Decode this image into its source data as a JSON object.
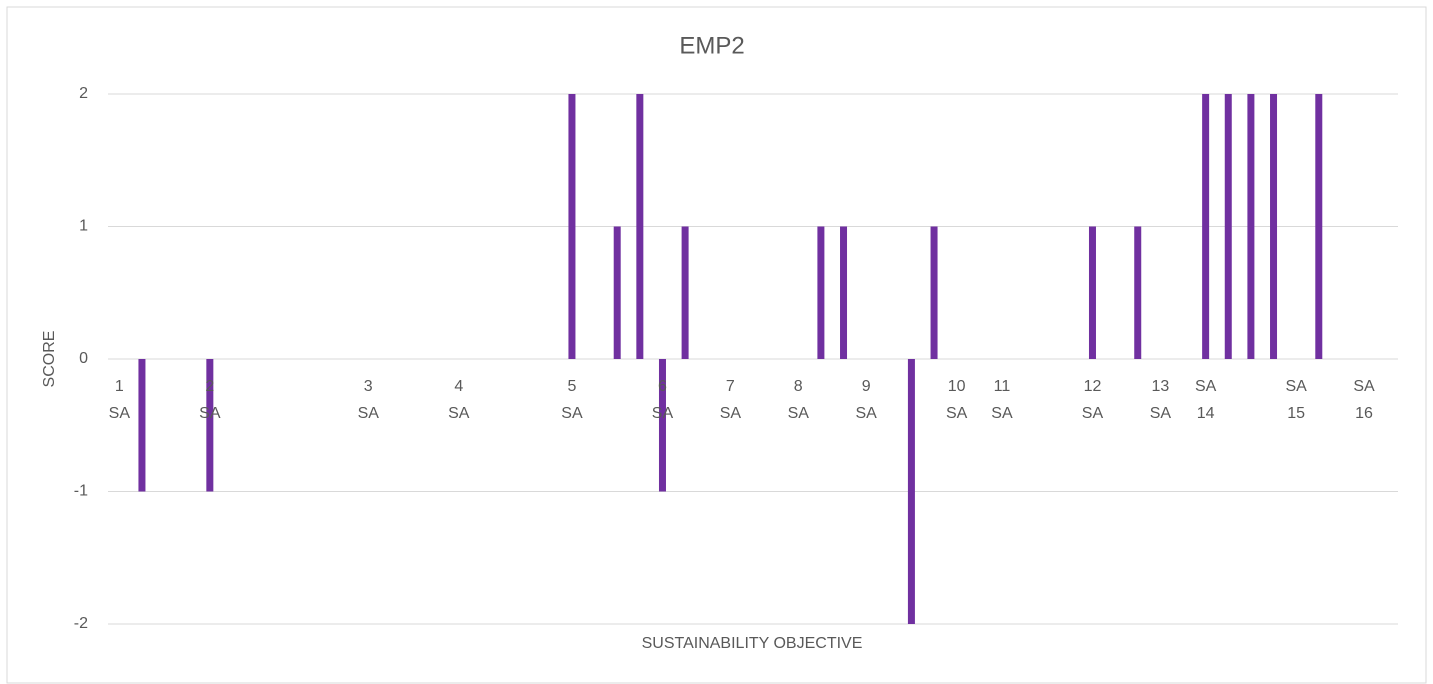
{
  "chart_data": {
    "type": "bar",
    "title": "EMP2",
    "x_label": "SUSTAINABILITY OBJECTIVE",
    "y_label": "SCORE",
    "categories": [
      "1 SA",
      null,
      null,
      null,
      "2 SA",
      null,
      null,
      null,
      null,
      null,
      null,
      "3 SA",
      null,
      null,
      null,
      "4 SA",
      null,
      null,
      null,
      null,
      "5 SA",
      null,
      null,
      null,
      "6 SA",
      null,
      null,
      "7 SA",
      null,
      null,
      "8 SA",
      null,
      null,
      "9 SA",
      null,
      null,
      null,
      "10 SA",
      null,
      "11 SA",
      null,
      null,
      null,
      "12 SA",
      null,
      null,
      "13 SA",
      null,
      "SA 14",
      null,
      null,
      null,
      "SA 15",
      null,
      null,
      "SA 16",
      null
    ],
    "values": [
      null,
      -1,
      null,
      null,
      -1,
      null,
      null,
      null,
      null,
      null,
      null,
      null,
      null,
      null,
      null,
      null,
      null,
      null,
      null,
      null,
      2,
      null,
      1,
      2,
      -1,
      1,
      null,
      null,
      null,
      null,
      null,
      1,
      1,
      null,
      null,
      -2,
      1,
      null,
      null,
      null,
      null,
      null,
      null,
      1,
      null,
      1,
      null,
      null,
      2,
      2,
      2,
      2,
      null,
      2,
      null,
      null,
      null
    ],
    "color": "#7030a0",
    "ylim": [
      -2,
      2
    ],
    "yticks": [
      -2,
      -1,
      0,
      1,
      2
    ],
    "grid": true
  }
}
